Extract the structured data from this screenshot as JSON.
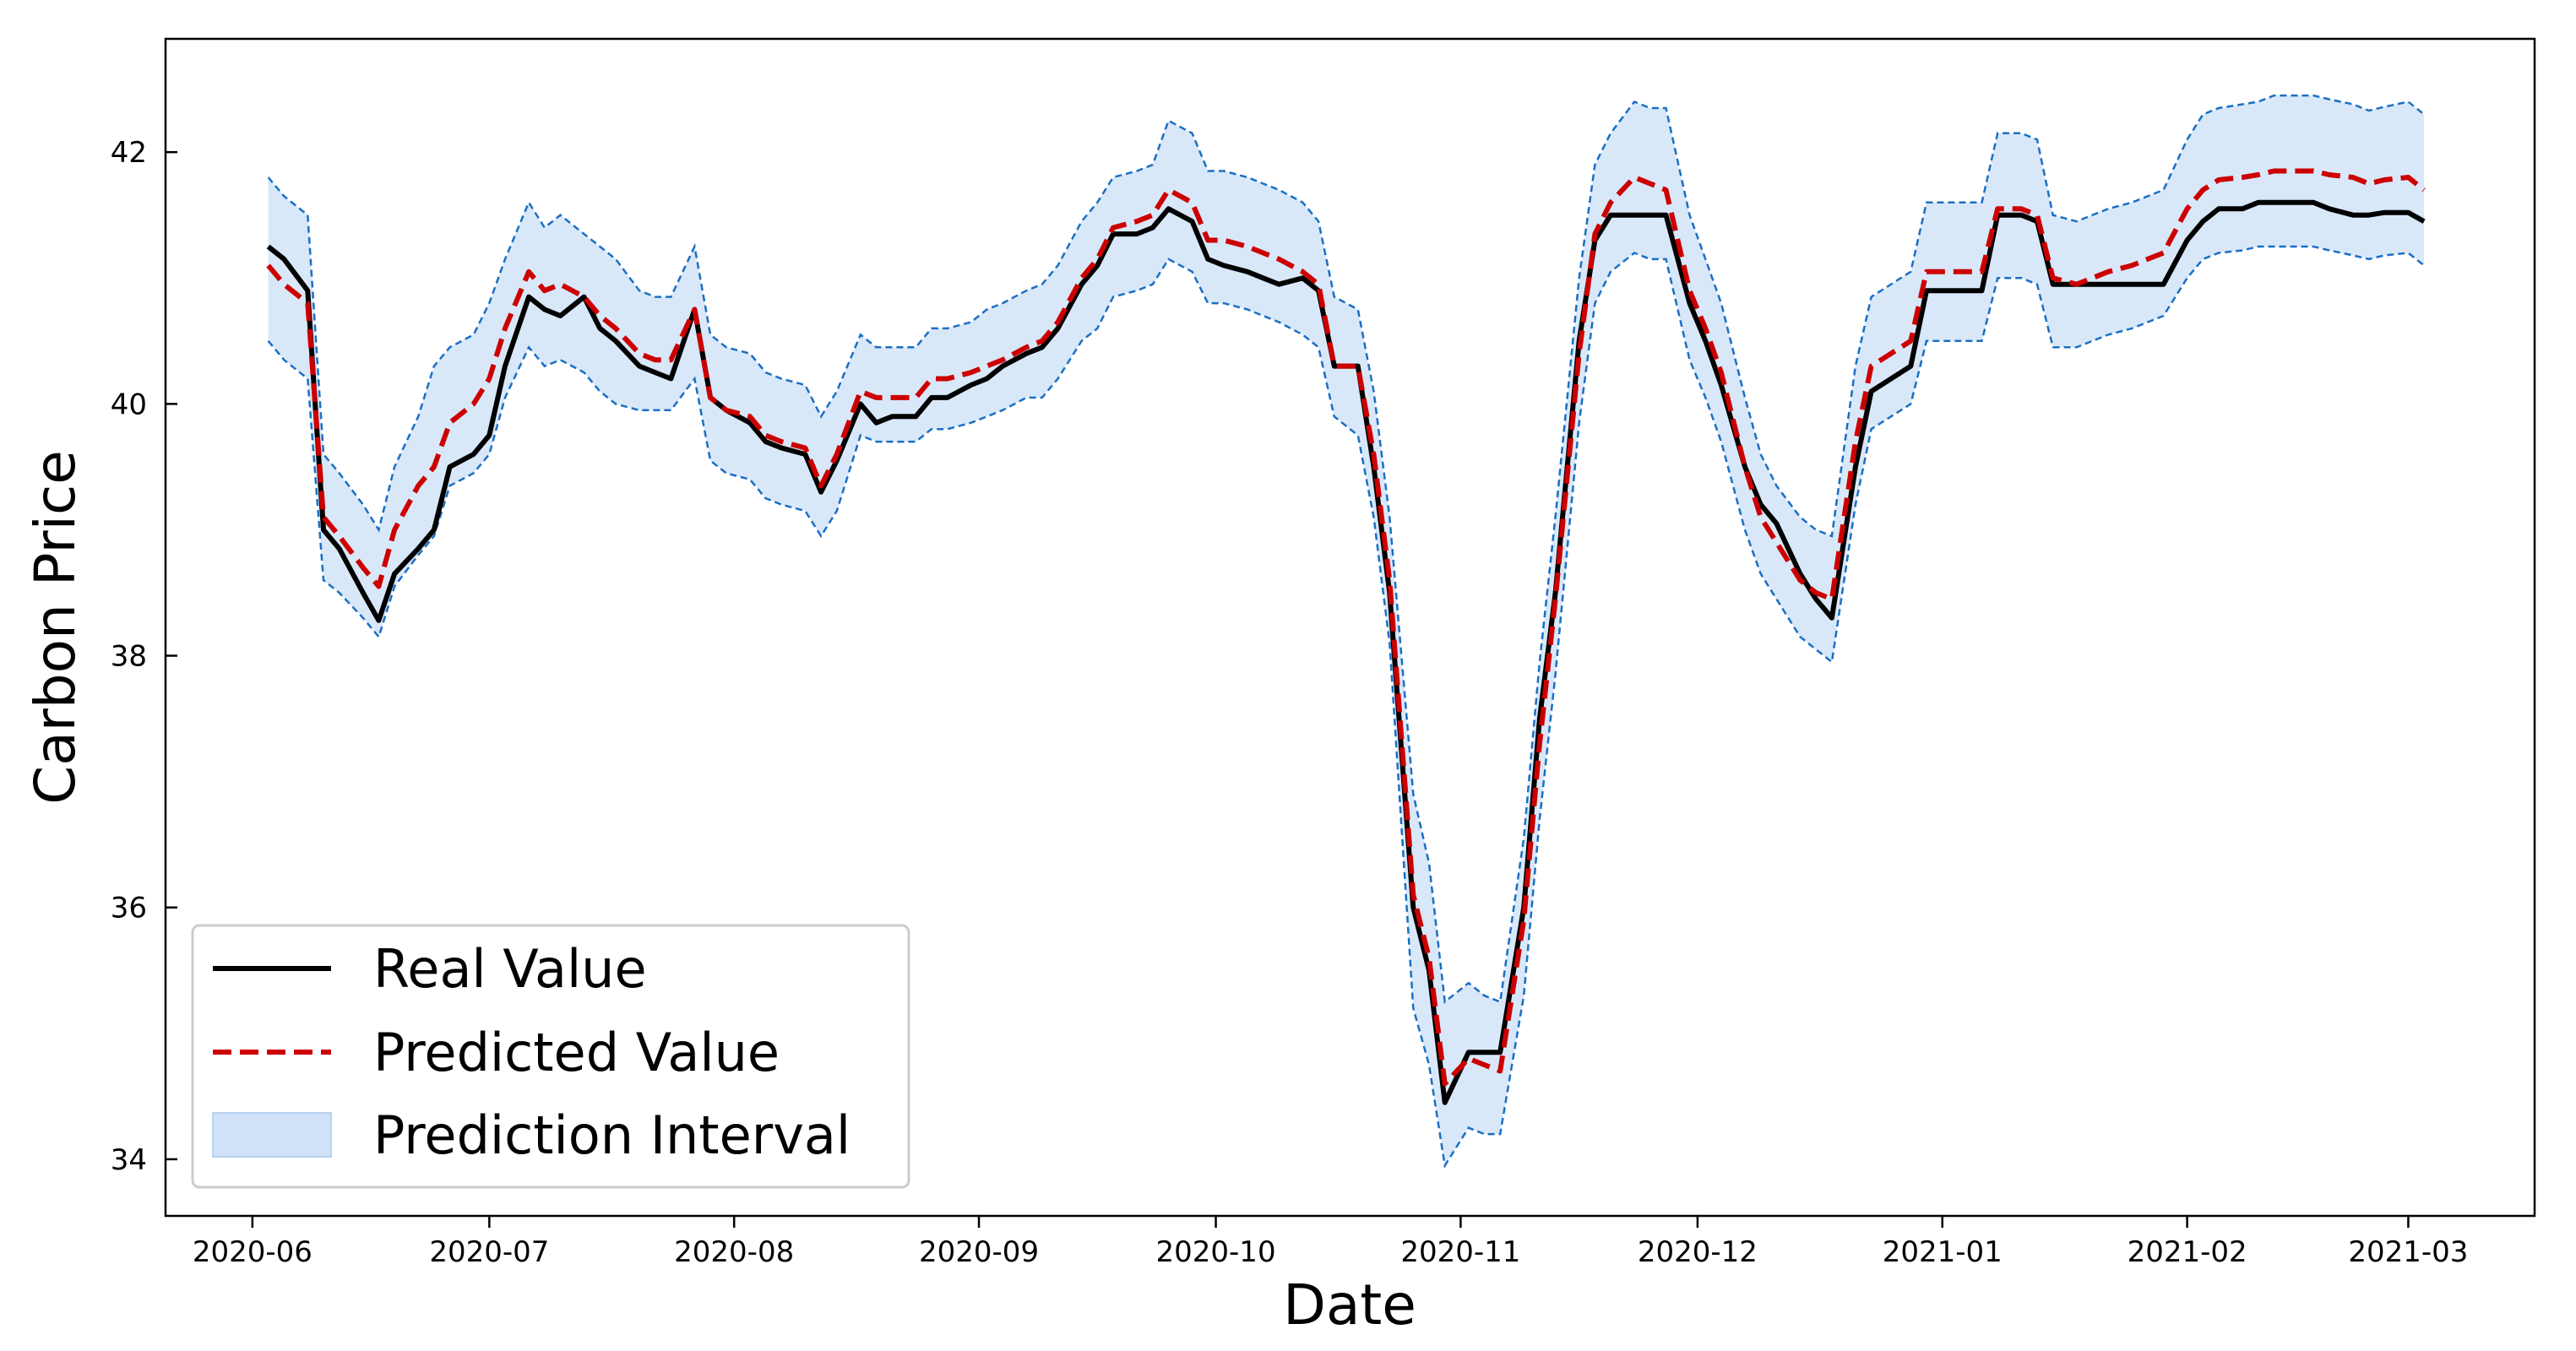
{
  "chart_data": {
    "type": "line",
    "title": "",
    "xlabel": "Date",
    "ylabel": "Carbon Price",
    "xlim": [
      "2020-05-21",
      "2021-03-17"
    ],
    "ylim": [
      33.55,
      42.9
    ],
    "xticks": [
      "2020-06",
      "2020-07",
      "2020-08",
      "2020-09",
      "2020-10",
      "2020-11",
      "2020-12",
      "2021-01",
      "2021-02",
      "2021-03"
    ],
    "yticks": [
      34,
      36,
      38,
      40,
      42
    ],
    "grid": false,
    "legend": {
      "placement": "lower-left"
    },
    "colors": {
      "real": "#000000",
      "predicted": "#cc0000",
      "interval_fill": "#cfe2f8",
      "interval_edge": "#1a6fc4"
    },
    "x": [
      "2020-06-03",
      "2020-06-05",
      "2020-06-08",
      "2020-06-10",
      "2020-06-12",
      "2020-06-15",
      "2020-06-17",
      "2020-06-19",
      "2020-06-22",
      "2020-06-24",
      "2020-06-26",
      "2020-06-29",
      "2020-07-01",
      "2020-07-03",
      "2020-07-06",
      "2020-07-08",
      "2020-07-10",
      "2020-07-13",
      "2020-07-15",
      "2020-07-17",
      "2020-07-20",
      "2020-07-22",
      "2020-07-24",
      "2020-07-27",
      "2020-07-29",
      "2020-07-31",
      "2020-08-03",
      "2020-08-05",
      "2020-08-07",
      "2020-08-10",
      "2020-08-12",
      "2020-08-14",
      "2020-08-17",
      "2020-08-19",
      "2020-08-21",
      "2020-08-24",
      "2020-08-26",
      "2020-08-28",
      "2020-08-31",
      "2020-09-02",
      "2020-09-04",
      "2020-09-07",
      "2020-09-09",
      "2020-09-11",
      "2020-09-14",
      "2020-09-16",
      "2020-09-18",
      "2020-09-21",
      "2020-09-23",
      "2020-09-25",
      "2020-09-28",
      "2020-09-30",
      "2020-10-02",
      "2020-10-05",
      "2020-10-07",
      "2020-10-09",
      "2020-10-12",
      "2020-10-14",
      "2020-10-16",
      "2020-10-19",
      "2020-10-21",
      "2020-10-23",
      "2020-10-26",
      "2020-10-28",
      "2020-10-30",
      "2020-11-02",
      "2020-11-04",
      "2020-11-06",
      "2020-11-09",
      "2020-11-11",
      "2020-11-13",
      "2020-11-16",
      "2020-11-18",
      "2020-11-20",
      "2020-11-23",
      "2020-11-25",
      "2020-11-27",
      "2020-11-30",
      "2020-12-02",
      "2020-12-04",
      "2020-12-07",
      "2020-12-09",
      "2020-12-11",
      "2020-12-14",
      "2020-12-16",
      "2020-12-18",
      "2020-12-21",
      "2020-12-23",
      "2020-12-28",
      "2020-12-30",
      "2021-01-04",
      "2021-01-06",
      "2021-01-08",
      "2021-01-11",
      "2021-01-13",
      "2021-01-15",
      "2021-01-18",
      "2021-01-20",
      "2021-01-22",
      "2021-01-25",
      "2021-01-27",
      "2021-01-29",
      "2021-02-01",
      "2021-02-03",
      "2021-02-05",
      "2021-02-08",
      "2021-02-10",
      "2021-02-12",
      "2021-02-15",
      "2021-02-17",
      "2021-02-19",
      "2021-02-22",
      "2021-02-24",
      "2021-02-26",
      "2021-03-01",
      "2021-03-03"
    ],
    "series": [
      {
        "name": "Real Value",
        "values": [
          41.25,
          41.15,
          40.9,
          39.0,
          38.85,
          38.5,
          38.28,
          38.65,
          38.85,
          39.0,
          39.5,
          39.6,
          39.75,
          40.3,
          40.85,
          40.75,
          40.7,
          40.85,
          40.6,
          40.5,
          40.3,
          40.25,
          40.2,
          40.75,
          40.05,
          39.95,
          39.85,
          39.7,
          39.65,
          39.6,
          39.3,
          39.55,
          40.0,
          39.85,
          39.9,
          39.9,
          40.05,
          40.05,
          40.15,
          40.2,
          40.3,
          40.4,
          40.45,
          40.6,
          40.95,
          41.1,
          41.35,
          41.35,
          41.4,
          41.55,
          41.45,
          41.15,
          41.1,
          41.05,
          41.0,
          40.95,
          41.0,
          40.9,
          40.3,
          40.3,
          39.5,
          38.5,
          36.0,
          35.5,
          34.45,
          34.85,
          34.85,
          34.85,
          36.0,
          37.5,
          38.5,
          40.5,
          41.3,
          41.5,
          41.5,
          41.5,
          41.5,
          40.8,
          40.5,
          40.15,
          39.5,
          39.2,
          39.05,
          38.65,
          38.45,
          38.3,
          39.5,
          40.1,
          40.3,
          40.9,
          40.9,
          40.9,
          41.5,
          41.5,
          41.45,
          40.95,
          40.95,
          40.95,
          40.95,
          40.95,
          40.95,
          40.95,
          41.3,
          41.45,
          41.55,
          41.55,
          41.6,
          41.6,
          41.6,
          41.6,
          41.55,
          41.5,
          41.5,
          41.52,
          41.52,
          41.45
        ]
      },
      {
        "name": "Predicted Value",
        "values": [
          41.1,
          40.95,
          40.8,
          39.1,
          38.95,
          38.7,
          38.55,
          39.0,
          39.35,
          39.5,
          39.85,
          40.0,
          40.2,
          40.6,
          41.05,
          40.9,
          40.95,
          40.85,
          40.7,
          40.6,
          40.4,
          40.35,
          40.35,
          40.75,
          40.05,
          39.95,
          39.9,
          39.75,
          39.7,
          39.65,
          39.35,
          39.6,
          40.1,
          40.05,
          40.05,
          40.05,
          40.2,
          40.2,
          40.25,
          40.3,
          40.35,
          40.45,
          40.5,
          40.65,
          41.0,
          41.15,
          41.4,
          41.45,
          41.5,
          41.7,
          41.6,
          41.3,
          41.3,
          41.25,
          41.2,
          41.15,
          41.05,
          40.95,
          40.3,
          40.3,
          39.6,
          38.6,
          36.1,
          35.6,
          34.6,
          34.8,
          34.75,
          34.7,
          35.9,
          37.3,
          38.45,
          40.4,
          41.35,
          41.6,
          41.8,
          41.75,
          41.7,
          40.9,
          40.6,
          40.25,
          39.5,
          39.1,
          38.9,
          38.6,
          38.5,
          38.45,
          39.7,
          40.3,
          40.5,
          41.05,
          41.05,
          41.05,
          41.55,
          41.55,
          41.5,
          41.0,
          40.95,
          41.0,
          41.05,
          41.1,
          41.15,
          41.2,
          41.55,
          41.7,
          41.78,
          41.8,
          41.82,
          41.85,
          41.85,
          41.85,
          41.82,
          41.8,
          41.75,
          41.78,
          41.8,
          41.7
        ]
      },
      {
        "name": "Prediction Interval",
        "lower": [
          40.5,
          40.35,
          40.2,
          38.6,
          38.5,
          38.3,
          38.15,
          38.55,
          38.8,
          38.95,
          39.35,
          39.45,
          39.6,
          40.05,
          40.45,
          40.3,
          40.35,
          40.25,
          40.1,
          40.0,
          39.95,
          39.95,
          39.95,
          40.2,
          39.55,
          39.45,
          39.4,
          39.25,
          39.2,
          39.15,
          38.95,
          39.15,
          39.75,
          39.7,
          39.7,
          39.7,
          39.8,
          39.8,
          39.85,
          39.9,
          39.95,
          40.05,
          40.05,
          40.2,
          40.5,
          40.6,
          40.85,
          40.9,
          40.95,
          41.15,
          41.05,
          40.8,
          40.8,
          40.75,
          40.7,
          40.65,
          40.55,
          40.45,
          39.9,
          39.75,
          39.1,
          38.1,
          35.2,
          34.75,
          33.95,
          34.25,
          34.2,
          34.2,
          35.3,
          36.7,
          37.85,
          39.85,
          40.8,
          41.05,
          41.2,
          41.15,
          41.15,
          40.35,
          40.05,
          39.7,
          39.0,
          38.65,
          38.45,
          38.15,
          38.05,
          37.95,
          39.2,
          39.8,
          40.0,
          40.5,
          40.5,
          40.5,
          41.0,
          41.0,
          40.95,
          40.45,
          40.45,
          40.5,
          40.55,
          40.6,
          40.65,
          40.7,
          41.0,
          41.15,
          41.2,
          41.22,
          41.25,
          41.25,
          41.25,
          41.25,
          41.22,
          41.18,
          41.15,
          41.18,
          41.2,
          41.1
        ],
        "upper": [
          41.8,
          41.65,
          41.5,
          39.6,
          39.45,
          39.2,
          39.0,
          39.5,
          39.9,
          40.3,
          40.45,
          40.55,
          40.8,
          41.15,
          41.6,
          41.4,
          41.5,
          41.35,
          41.25,
          41.15,
          40.9,
          40.85,
          40.85,
          41.25,
          40.55,
          40.45,
          40.4,
          40.25,
          40.2,
          40.15,
          39.9,
          40.1,
          40.55,
          40.45,
          40.45,
          40.45,
          40.6,
          40.6,
          40.65,
          40.75,
          40.8,
          40.9,
          40.95,
          41.1,
          41.45,
          41.6,
          41.8,
          41.85,
          41.9,
          42.25,
          42.15,
          41.85,
          41.85,
          41.8,
          41.75,
          41.7,
          41.6,
          41.45,
          40.85,
          40.75,
          40.1,
          39.1,
          36.9,
          36.35,
          35.25,
          35.4,
          35.3,
          35.25,
          36.55,
          37.95,
          39.1,
          41.0,
          41.9,
          42.15,
          42.4,
          42.35,
          42.35,
          41.5,
          41.15,
          40.8,
          40.05,
          39.6,
          39.35,
          39.1,
          39.0,
          38.95,
          40.3,
          40.85,
          41.05,
          41.6,
          41.6,
          41.6,
          42.15,
          42.15,
          42.1,
          41.5,
          41.45,
          41.5,
          41.55,
          41.6,
          41.65,
          41.7,
          42.1,
          42.3,
          42.35,
          42.38,
          42.4,
          42.45,
          42.45,
          42.45,
          42.42,
          42.38,
          42.33,
          42.36,
          42.4,
          42.3
        ]
      }
    ]
  }
}
